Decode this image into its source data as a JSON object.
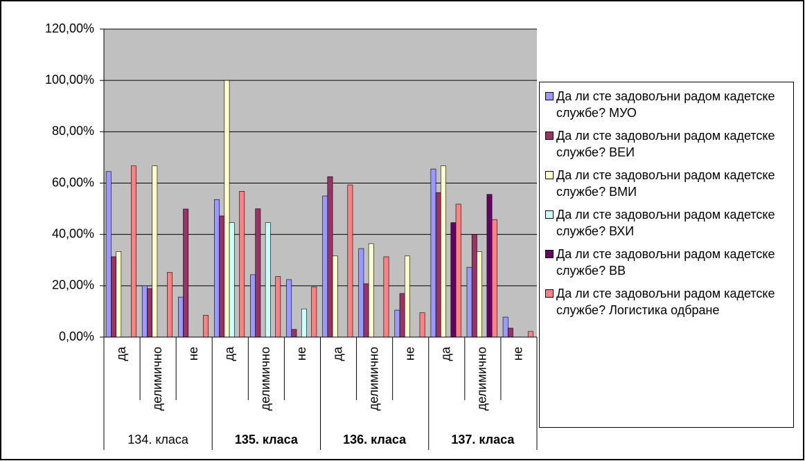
{
  "chart_data": {
    "type": "bar",
    "categories": [
      "да",
      "делимично",
      "не",
      "да",
      "делимично",
      "не",
      "да",
      "делимично",
      "не",
      "да",
      "делимично",
      "не"
    ],
    "groups": [
      "134. класа",
      "135. класа",
      "136. класа",
      "137. класа"
    ],
    "series": [
      {
        "name": "Да ли сте задовољни радом кадетске службе? МУО",
        "color": "#9999ff",
        "values": [
          64.5,
          20,
          15.6,
          53.6,
          24.3,
          22.4,
          55,
          34.5,
          10.5,
          65.5,
          27.2,
          7.8
        ]
      },
      {
        "name": "Да ли сте задовољни радом кадетске службе? ВЕИ",
        "color": "#993366",
        "values": [
          31.3,
          18.9,
          49.9,
          47.2,
          50,
          3,
          62.5,
          20.8,
          17,
          56.3,
          40,
          3.5
        ]
      },
      {
        "name": "Да ли сте задовољни радом кадетске службе? ВМИ",
        "color": "#ffffcc",
        "values": [
          33.3,
          66.7,
          0,
          100,
          0,
          0,
          31.6,
          36.4,
          31.6,
          66.7,
          33.3,
          0
        ]
      },
      {
        "name": "Да ли сте задовољни радом кадетске службе? ВХИ",
        "color": "#ccffff",
        "values": [
          null,
          null,
          null,
          44.6,
          44.6,
          11,
          null,
          null,
          null,
          null,
          null,
          null
        ]
      },
      {
        "name": "Да ли сте задовољни радом кадетске службе? ВВ",
        "color": "#660066",
        "values": [
          null,
          null,
          null,
          null,
          null,
          null,
          null,
          null,
          null,
          44.6,
          55.6,
          0
        ]
      },
      {
        "name": "Да ли сте задовољни радом кадетске службе? Логистика одбране",
        "color": "#ff8080",
        "values": [
          66.7,
          25.2,
          8.5,
          56.8,
          23.6,
          19.5,
          59.3,
          31.3,
          9.5,
          51.8,
          45.8,
          2.2
        ]
      }
    ],
    "ylim": [
      0,
      120
    ],
    "yticks": [
      {
        "value": 0,
        "label": "0,00%"
      },
      {
        "value": 20,
        "label": "20,00%"
      },
      {
        "value": 40,
        "label": "40,00%"
      },
      {
        "value": 60,
        "label": "60,00%"
      },
      {
        "value": 80,
        "label": "80,00%"
      },
      {
        "value": 100,
        "label": "100,00%"
      },
      {
        "value": 120,
        "label": "120,00%"
      }
    ],
    "grid": true,
    "legend": "right"
  }
}
